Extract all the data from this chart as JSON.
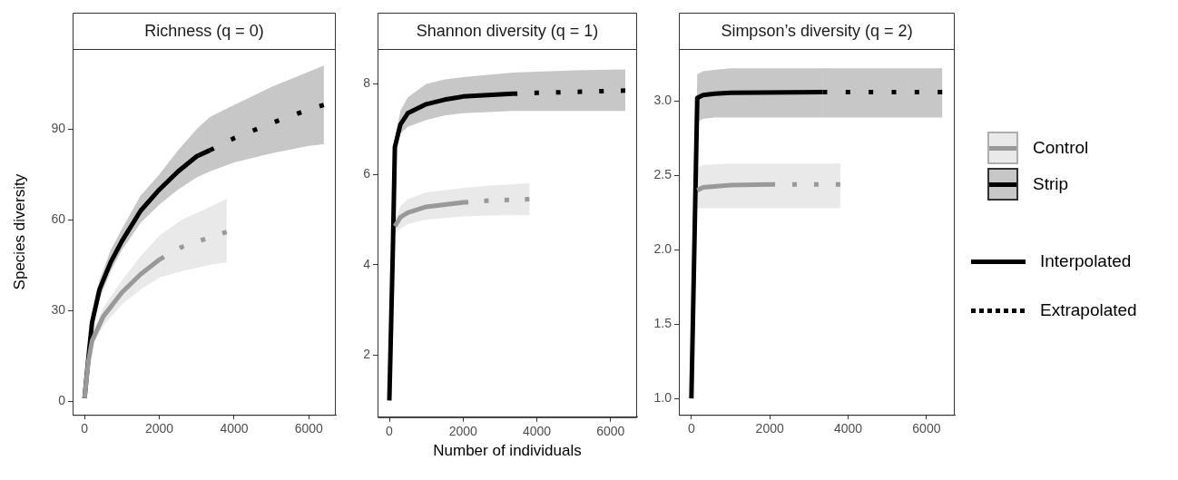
{
  "chart_data": [
    {
      "type": "line",
      "title": "Richness (q = 0)",
      "ylabel": "Species diversity",
      "xlim": [
        -320,
        6720
      ],
      "xticks": [
        0,
        2000,
        4000,
        6000
      ],
      "ylim": [
        -4.5,
        116.5
      ],
      "yticks": [
        0,
        30,
        60,
        90
      ],
      "legend": false,
      "series": [
        {
          "color": "#999999",
          "line_style": "solid",
          "x": [
            0,
            100,
            200,
            500,
            1000,
            1500,
            2020
          ],
          "values": [
            1,
            13,
            20,
            28,
            36,
            42,
            47
          ],
          "lower": [
            1,
            12,
            18,
            25,
            32,
            37,
            41
          ],
          "upper": [
            1,
            14,
            22,
            31,
            40,
            48,
            55
          ]
        },
        {
          "color": "#999999",
          "line_style": "dotted",
          "x": [
            2020,
            2600,
            3300,
            3800
          ],
          "values": [
            47,
            51,
            54,
            56
          ],
          "lower": [
            41,
            43,
            45,
            46
          ],
          "upper": [
            55,
            60,
            64,
            67
          ]
        },
        {
          "color": "#000000",
          "line_style": "solid",
          "x": [
            0,
            100,
            200,
            400,
            700,
            1000,
            1500,
            2000,
            2500,
            3000,
            3350
          ],
          "values": [
            1,
            14,
            26,
            37,
            46,
            53,
            63,
            70,
            76,
            81,
            83
          ],
          "lower": [
            1,
            13,
            24,
            34,
            43,
            50,
            59,
            65,
            70,
            74,
            76
          ],
          "upper": [
            1,
            15,
            28,
            40,
            50,
            57,
            68,
            75,
            83,
            90,
            94
          ]
        },
        {
          "color": "#000000",
          "line_style": "dotted",
          "x": [
            3350,
            4000,
            5000,
            6000,
            6400
          ],
          "values": [
            83,
            87,
            92,
            96.5,
            98
          ],
          "lower": [
            76,
            79,
            82,
            84.5,
            85
          ],
          "upper": [
            94,
            98,
            104,
            109,
            111
          ]
        }
      ]
    },
    {
      "type": "line",
      "title": "Shannon diversity (q = 1)",
      "xlabel": "Number of individuals",
      "xlim": [
        -320,
        6720
      ],
      "xticks": [
        0,
        2000,
        4000,
        6000
      ],
      "ylim": [
        0.63,
        8.77
      ],
      "yticks": [
        2,
        4,
        6,
        8
      ],
      "legend": false,
      "series": [
        {
          "color": "#999999",
          "line_style": "solid",
          "x": [
            150,
            300,
            500,
            1000,
            2020
          ],
          "values": [
            4.85,
            5.05,
            5.15,
            5.28,
            5.38
          ],
          "lower": [
            4.7,
            4.8,
            4.9,
            5.0,
            5.07
          ],
          "upper": [
            5.0,
            5.3,
            5.45,
            5.6,
            5.7
          ]
        },
        {
          "color": "#999999",
          "line_style": "dotted",
          "x": [
            2020,
            2700,
            3400,
            3800
          ],
          "values": [
            5.38,
            5.42,
            5.44,
            5.45
          ],
          "lower": [
            5.07,
            5.09,
            5.1,
            5.1
          ],
          "upper": [
            5.7,
            5.75,
            5.78,
            5.8
          ]
        },
        {
          "color": "#000000",
          "line_style": "solid",
          "x": [
            0,
            100,
            150,
            300,
            500,
            1000,
            1500,
            2000,
            3350
          ],
          "values": [
            1,
            4.5,
            6.6,
            7.1,
            7.35,
            7.55,
            7.65,
            7.72,
            7.78
          ],
          "lower": [
            1,
            4.5,
            6.5,
            6.9,
            7.05,
            7.2,
            7.3,
            7.35,
            7.4
          ],
          "upper": [
            1,
            4.5,
            6.8,
            7.4,
            7.7,
            8.0,
            8.1,
            8.15,
            8.25
          ]
        },
        {
          "color": "#000000",
          "line_style": "dotted",
          "x": [
            3350,
            4000,
            5000,
            6400
          ],
          "values": [
            7.78,
            7.8,
            7.82,
            7.85
          ],
          "lower": [
            7.4,
            7.4,
            7.4,
            7.4
          ],
          "upper": [
            8.25,
            8.27,
            8.3,
            8.32
          ]
        }
      ]
    },
    {
      "type": "line",
      "title": "Simpson’s diversity (q = 2)",
      "xlim": [
        -320,
        6720
      ],
      "xticks": [
        0,
        2000,
        4000,
        6000
      ],
      "ylim": [
        0.89,
        3.35
      ],
      "yticks": [
        {
          "value": 1,
          "label": "1.0"
        },
        1.5,
        {
          "value": 2,
          "label": "2.0"
        },
        2.5,
        {
          "value": 3,
          "label": "3.0"
        }
      ],
      "legend": "right",
      "annotations": [
        "Interpolated",
        "Extrapolated"
      ],
      "series": [
        {
          "name": "Control",
          "color": "#999999",
          "line_style": "solid",
          "x": [
            150,
            300,
            1000,
            2020
          ],
          "values": [
            2.4,
            2.42,
            2.435,
            2.44
          ],
          "lower": [
            2.28,
            2.28,
            2.28,
            2.28
          ],
          "upper": [
            2.55,
            2.57,
            2.58,
            2.58
          ]
        },
        {
          "color": "#999999",
          "line_style": "dotted",
          "x": [
            2020,
            2700,
            3400,
            3800
          ],
          "values": [
            2.44,
            2.44,
            2.44,
            2.44
          ],
          "lower": [
            2.28,
            2.28,
            2.28,
            2.28
          ],
          "upper": [
            2.58,
            2.58,
            2.58,
            2.58
          ]
        },
        {
          "name": "Strip",
          "color": "#000000",
          "line_style": "solid",
          "x": [
            0,
            150,
            300,
            600,
            1000,
            3350
          ],
          "values": [
            1,
            3.02,
            3.04,
            3.05,
            3.055,
            3.06
          ],
          "lower": [
            1,
            2.86,
            2.88,
            2.89,
            2.89,
            2.89
          ],
          "upper": [
            1,
            3.18,
            3.2,
            3.21,
            3.22,
            3.22
          ]
        },
        {
          "color": "#000000",
          "line_style": "dotted",
          "x": [
            3350,
            4000,
            5000,
            6400
          ],
          "values": [
            3.06,
            3.06,
            3.06,
            3.06
          ],
          "lower": [
            2.89,
            2.89,
            2.89,
            2.89
          ],
          "upper": [
            3.22,
            3.22,
            3.22,
            3.22
          ]
        }
      ]
    }
  ]
}
